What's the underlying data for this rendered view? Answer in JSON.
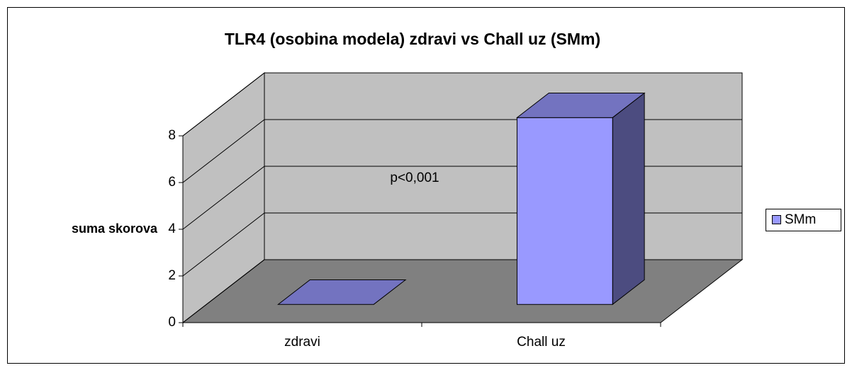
{
  "chart_data": {
    "type": "bar3d",
    "title": "TLR4 (osobina modela) zdravi vs Chall uz (SMm)",
    "ylabel": "suma skorova",
    "annotation": "p<0,001",
    "categories": [
      "zdravi",
      "Chall uz"
    ],
    "series": [
      {
        "name": "SMm",
        "color": "#9999ff",
        "values": [
          0,
          8
        ]
      }
    ],
    "ylim": [
      0,
      8
    ],
    "yticks": [
      0,
      2,
      4,
      6,
      8
    ],
    "grid": true,
    "legend": "right"
  }
}
